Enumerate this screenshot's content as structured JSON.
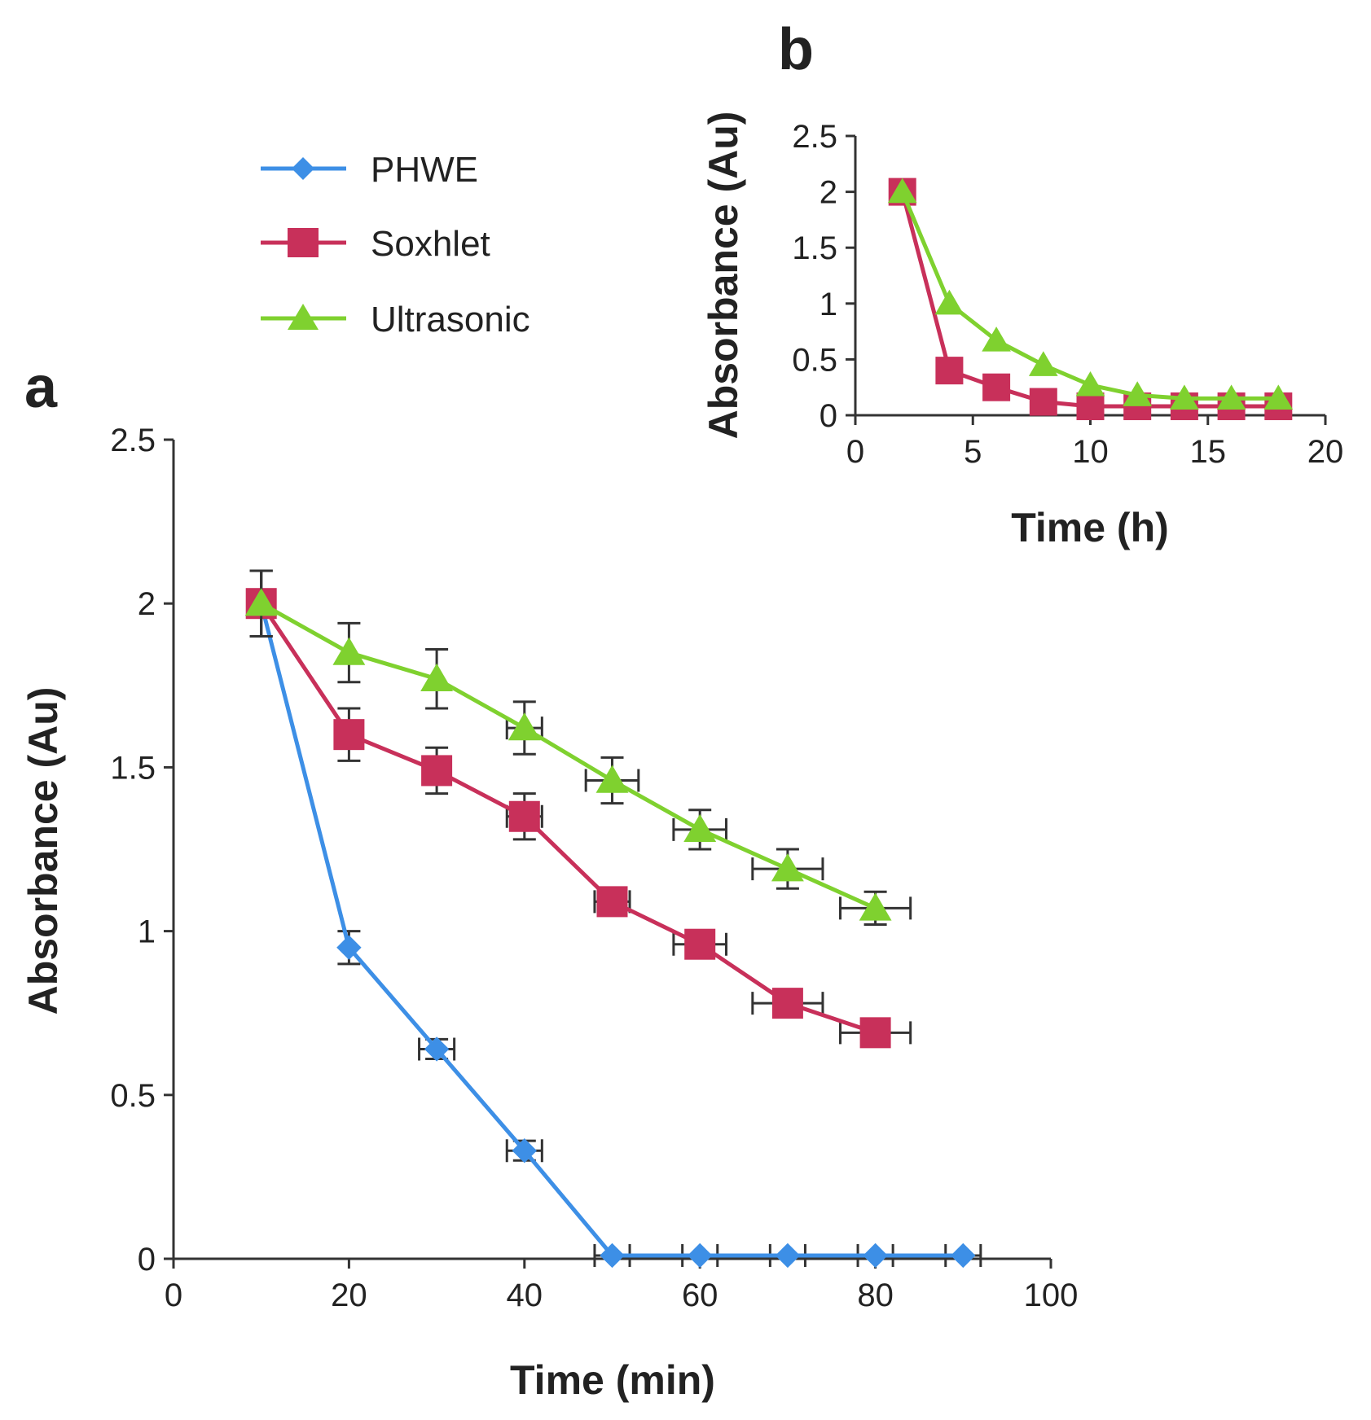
{
  "legend": [
    {
      "name": "PHWE",
      "color": "#3d8fe6",
      "marker": "diamond"
    },
    {
      "name": "Soxhlet",
      "color": "#c8305a",
      "marker": "square"
    },
    {
      "name": "Ultrasonic",
      "color": "#7fd12f",
      "marker": "triangle"
    }
  ],
  "chart_data": [
    {
      "panel": "a",
      "type": "line",
      "xlabel": "Time (min)",
      "ylabel": "Absorbance (Au)",
      "xlim": [
        0,
        100
      ],
      "ylim": [
        0,
        2.5
      ],
      "xticks": [
        "0",
        "20",
        "40",
        "60",
        "80",
        "100"
      ],
      "yticks": [
        "0",
        "0.5",
        "1",
        "1.5",
        "2",
        "2.5"
      ],
      "grid": false,
      "series": [
        {
          "name": "PHWE",
          "color": "#3d8fe6",
          "marker": "diamond",
          "x": [
            10,
            20,
            30,
            40,
            50,
            60,
            70,
            80,
            90
          ],
          "y": [
            2.0,
            0.95,
            0.64,
            0.33,
            0.01,
            0.01,
            0.01,
            0.01,
            0.01
          ],
          "yerr": [
            0.1,
            0.05,
            0.03,
            0.03,
            0.0,
            0.0,
            0.0,
            0.0,
            0.0
          ],
          "xerr": [
            0,
            0,
            2,
            2,
            2,
            2,
            2,
            2,
            2
          ]
        },
        {
          "name": "Soxhlet",
          "color": "#c8305a",
          "marker": "square",
          "x": [
            10,
            20,
            30,
            40,
            50,
            60,
            70,
            80
          ],
          "y": [
            2.0,
            1.6,
            1.49,
            1.35,
            1.09,
            0.96,
            0.78,
            0.69
          ],
          "yerr": [
            0.1,
            0.08,
            0.07,
            0.07,
            0.04,
            0.03,
            0.03,
            0.02
          ],
          "xerr": [
            0,
            0,
            0,
            2,
            2,
            3,
            4,
            4
          ]
        },
        {
          "name": "Ultrasonic",
          "color": "#7fd12f",
          "marker": "triangle",
          "x": [
            10,
            20,
            30,
            40,
            50,
            60,
            70,
            80
          ],
          "y": [
            2.0,
            1.85,
            1.77,
            1.62,
            1.46,
            1.31,
            1.19,
            1.07
          ],
          "yerr": [
            0.1,
            0.09,
            0.09,
            0.08,
            0.07,
            0.06,
            0.06,
            0.05
          ],
          "xerr": [
            0,
            0,
            0,
            2,
            3,
            3,
            4,
            4
          ]
        }
      ]
    },
    {
      "panel": "b",
      "type": "line",
      "xlabel": "Time (h)",
      "ylabel": "Absorbance (Au)",
      "xlim": [
        0,
        20
      ],
      "ylim": [
        0,
        2.5
      ],
      "xticks": [
        "0",
        "5",
        "10",
        "15",
        "20"
      ],
      "yticks": [
        "0",
        "0.5",
        "1",
        "1.5",
        "2",
        "2.5"
      ],
      "grid": false,
      "series": [
        {
          "name": "Soxhlet",
          "color": "#c8305a",
          "marker": "square",
          "x": [
            2,
            4,
            6,
            8,
            10,
            12,
            14,
            16,
            18
          ],
          "y": [
            2.0,
            0.4,
            0.25,
            0.12,
            0.08,
            0.08,
            0.08,
            0.08,
            0.08
          ]
        },
        {
          "name": "Ultrasonic",
          "color": "#7fd12f",
          "marker": "triangle",
          "x": [
            2,
            4,
            6,
            8,
            10,
            12,
            14,
            16,
            18
          ],
          "y": [
            2.0,
            1.0,
            0.67,
            0.45,
            0.27,
            0.18,
            0.15,
            0.15,
            0.15
          ]
        }
      ]
    }
  ]
}
